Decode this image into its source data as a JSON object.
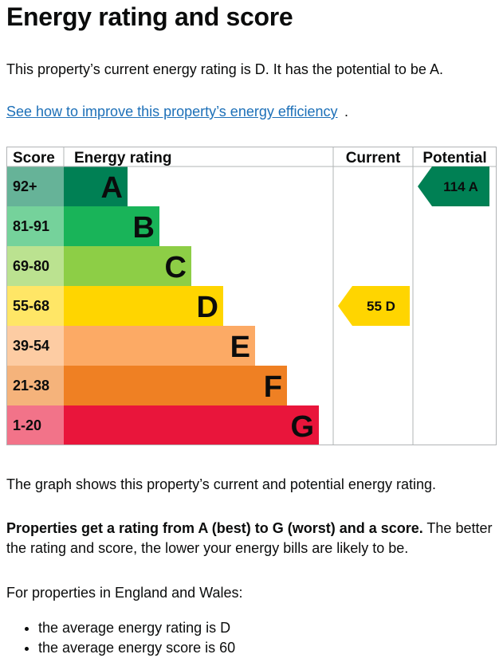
{
  "page": {
    "title": "Energy rating and score",
    "intro": "This property’s current energy rating is D. It has the potential to be A.",
    "improve_link": "See how to improve this property’s energy efficiency",
    "improve_link_suffix": ".",
    "graph_description": "The graph shows this property’s current and potential energy rating.",
    "rating_explain_bold": "Properties get a rating from A (best) to G (worst) and a score.",
    "rating_explain_rest": " The better the rating and score, the lower your energy bills are likely to be.",
    "average_intro": "For properties in England and Wales:",
    "averages": [
      "the average energy rating is D",
      "the average energy score is 60"
    ]
  },
  "chart_data": {
    "type": "bar",
    "headers": {
      "score": "Score",
      "rating": "Energy rating",
      "current": "Current",
      "potential": "Potential"
    },
    "bands": [
      {
        "letter": "A",
        "range": "92+",
        "color": "#008054",
        "score_color": "#66b398"
      },
      {
        "letter": "B",
        "range": "81-91",
        "color": "#19b459",
        "score_color": "#75d29b"
      },
      {
        "letter": "C",
        "range": "69-80",
        "color": "#8dce46",
        "score_color": "#bbe290"
      },
      {
        "letter": "D",
        "range": "55-68",
        "color": "#ffd500",
        "score_color": "#ffe666"
      },
      {
        "letter": "E",
        "range": "39-54",
        "color": "#fcaa65",
        "score_color": "#fdcca3"
      },
      {
        "letter": "F",
        "range": "21-38",
        "color": "#ef8023",
        "score_color": "#f5b37b"
      },
      {
        "letter": "G",
        "range": "1-20",
        "color": "#e9153b",
        "score_color": "#f27389"
      }
    ],
    "current": {
      "score": 55,
      "letter": "D",
      "label": "55 D",
      "color": "#ffd500"
    },
    "potential": {
      "score": 114,
      "letter": "A",
      "label": "114 A",
      "color": "#008054"
    },
    "border_color": "#b1b4b6"
  }
}
